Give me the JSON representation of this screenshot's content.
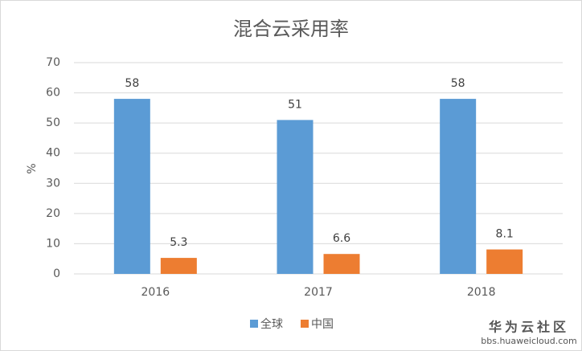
{
  "chart_data": {
    "type": "bar",
    "title": "混合云采用率",
    "y_label": "%",
    "categories": [
      "2016",
      "2017",
      "2018"
    ],
    "series": [
      {
        "name": "全球",
        "color": "#5b9bd5",
        "values": [
          58,
          51,
          58
        ]
      },
      {
        "name": "中国",
        "color": "#ed7d31",
        "values": [
          5.3,
          6.6,
          8.1
        ]
      }
    ],
    "ylim": [
      0,
      70
    ],
    "yticks": [
      0,
      10,
      20,
      30,
      40,
      50,
      60,
      70
    ],
    "grid": true,
    "legend": "bottom"
  },
  "watermark": {
    "brand": "华为云社区",
    "url": "bbs.huaweicloud.com"
  }
}
